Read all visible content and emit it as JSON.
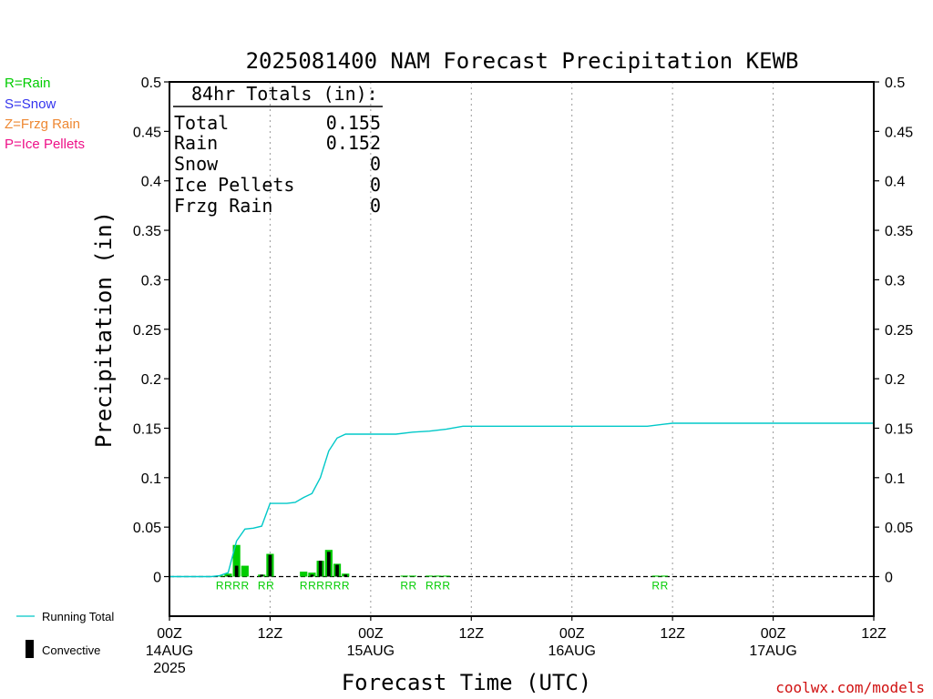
{
  "colors": {
    "rain": "#00cc00",
    "snow": "#3333ee",
    "frzg": "#ee8833",
    "ice": "#ee1188",
    "running_total": "#00c8c8",
    "convective": "#000000",
    "credit": "#d01010"
  },
  "legend": {
    "rain": "R=Rain",
    "snow": "S=Snow",
    "frzg": "Z=Frzg Rain",
    "ice": "P=Ice Pellets",
    "running_total": "Running Total",
    "convective": "Convective"
  },
  "totals": {
    "header": "84hr Totals (in):",
    "rows": [
      {
        "label": "Total",
        "value": "0.155"
      },
      {
        "label": "Rain",
        "value": "0.152"
      },
      {
        "label": "Snow",
        "value": "0"
      },
      {
        "label": "Ice Pellets",
        "value": "0"
      },
      {
        "label": "Frzg Rain",
        "value": "0"
      }
    ]
  },
  "credit": "coolwx.com/models",
  "chart_data": {
    "type": "bar",
    "title": "2025081400 NAM Forecast Precipitation KEWB",
    "xlabel": "Forecast Time (UTC)",
    "ylabel": "Precipitation (in)",
    "ylim": [
      -0.04,
      0.5
    ],
    "yticks": [
      "0.5",
      "0.45",
      "0.4",
      "0.35",
      "0.3",
      "0.25",
      "0.2",
      "0.15",
      "0.1",
      "0.05",
      "0"
    ],
    "xlim_hours": [
      0,
      84
    ],
    "x_ticks": [
      {
        "hour": 0,
        "label": "00Z",
        "date": "14AUG",
        "year": "2025"
      },
      {
        "hour": 12,
        "label": "12Z",
        "date": "",
        "year": ""
      },
      {
        "hour": 24,
        "label": "00Z",
        "date": "15AUG",
        "year": ""
      },
      {
        "hour": 36,
        "label": "12Z",
        "date": "",
        "year": ""
      },
      {
        "hour": 48,
        "label": "00Z",
        "date": "16AUG",
        "year": ""
      },
      {
        "hour": 60,
        "label": "12Z",
        "date": "",
        "year": ""
      },
      {
        "hour": 72,
        "label": "00Z",
        "date": "17AUG",
        "year": ""
      },
      {
        "hour": 84,
        "label": "12Z",
        "date": "",
        "year": ""
      }
    ],
    "grid_vertical": "dotted",
    "hourly_precip": [
      {
        "hour": 6,
        "total": 0.001,
        "convective": 0.0
      },
      {
        "hour": 7,
        "total": 0.003,
        "convective": 0.001
      },
      {
        "hour": 8,
        "total": 0.032,
        "convective": 0.011
      },
      {
        "hour": 9,
        "total": 0.011,
        "convective": 0.0
      },
      {
        "hour": 10,
        "total": 0.0,
        "convective": 0.0
      },
      {
        "hour": 11,
        "total": 0.002,
        "convective": 0.002
      },
      {
        "hour": 12,
        "total": 0.023,
        "convective": 0.022
      },
      {
        "hour": 16,
        "total": 0.005,
        "convective": 0.0
      },
      {
        "hour": 17,
        "total": 0.004,
        "convective": 0.002
      },
      {
        "hour": 18,
        "total": 0.016,
        "convective": 0.016
      },
      {
        "hour": 19,
        "total": 0.027,
        "convective": 0.025
      },
      {
        "hour": 20,
        "total": 0.013,
        "convective": 0.012
      },
      {
        "hour": 21,
        "total": 0.003,
        "convective": 0.002
      },
      {
        "hour": 28,
        "total": 0.001,
        "convective": 0.0
      },
      {
        "hour": 29,
        "total": 0.001,
        "convective": 0.0
      },
      {
        "hour": 31,
        "total": 0.001,
        "convective": 0.0
      },
      {
        "hour": 32,
        "total": 0.001,
        "convective": 0.0
      },
      {
        "hour": 33,
        "total": 0.001,
        "convective": 0.0
      },
      {
        "hour": 58,
        "total": 0.001,
        "convective": 0.0
      },
      {
        "hour": 59,
        "total": 0.001,
        "convective": 0.0
      }
    ],
    "running_total": [
      {
        "hour": 0,
        "value": 0
      },
      {
        "hour": 4,
        "value": 0
      },
      {
        "hour": 5,
        "value": 0
      },
      {
        "hour": 6,
        "value": 0.001
      },
      {
        "hour": 7,
        "value": 0.004
      },
      {
        "hour": 7.5,
        "value": 0.02
      },
      {
        "hour": 8,
        "value": 0.036
      },
      {
        "hour": 9,
        "value": 0.048
      },
      {
        "hour": 10,
        "value": 0.049
      },
      {
        "hour": 11,
        "value": 0.051
      },
      {
        "hour": 12,
        "value": 0.074
      },
      {
        "hour": 14,
        "value": 0.074
      },
      {
        "hour": 15,
        "value": 0.075
      },
      {
        "hour": 16,
        "value": 0.08
      },
      {
        "hour": 17,
        "value": 0.084
      },
      {
        "hour": 18,
        "value": 0.1
      },
      {
        "hour": 19,
        "value": 0.127
      },
      {
        "hour": 20,
        "value": 0.14
      },
      {
        "hour": 21,
        "value": 0.144
      },
      {
        "hour": 27,
        "value": 0.144
      },
      {
        "hour": 29,
        "value": 0.146
      },
      {
        "hour": 31,
        "value": 0.147
      },
      {
        "hour": 33,
        "value": 0.149
      },
      {
        "hour": 35,
        "value": 0.152
      },
      {
        "hour": 57,
        "value": 0.152
      },
      {
        "hour": 59,
        "value": 0.154
      },
      {
        "hour": 60,
        "value": 0.155
      },
      {
        "hour": 84,
        "value": 0.155
      }
    ],
    "ptype_labels": [
      {
        "hour": 6,
        "text": "R"
      },
      {
        "hour": 7,
        "text": "R"
      },
      {
        "hour": 8,
        "text": "R"
      },
      {
        "hour": 9,
        "text": "R"
      },
      {
        "hour": 11,
        "text": "R"
      },
      {
        "hour": 12,
        "text": "R"
      },
      {
        "hour": 16,
        "text": "R"
      },
      {
        "hour": 17,
        "text": "R"
      },
      {
        "hour": 18,
        "text": "R"
      },
      {
        "hour": 19,
        "text": "R"
      },
      {
        "hour": 20,
        "text": "R"
      },
      {
        "hour": 21,
        "text": "R"
      },
      {
        "hour": 28,
        "text": "R"
      },
      {
        "hour": 29,
        "text": "R"
      },
      {
        "hour": 31,
        "text": "R"
      },
      {
        "hour": 32,
        "text": "R"
      },
      {
        "hour": 33,
        "text": "R"
      },
      {
        "hour": 58,
        "text": "R"
      },
      {
        "hour": 59,
        "text": "R"
      }
    ]
  }
}
